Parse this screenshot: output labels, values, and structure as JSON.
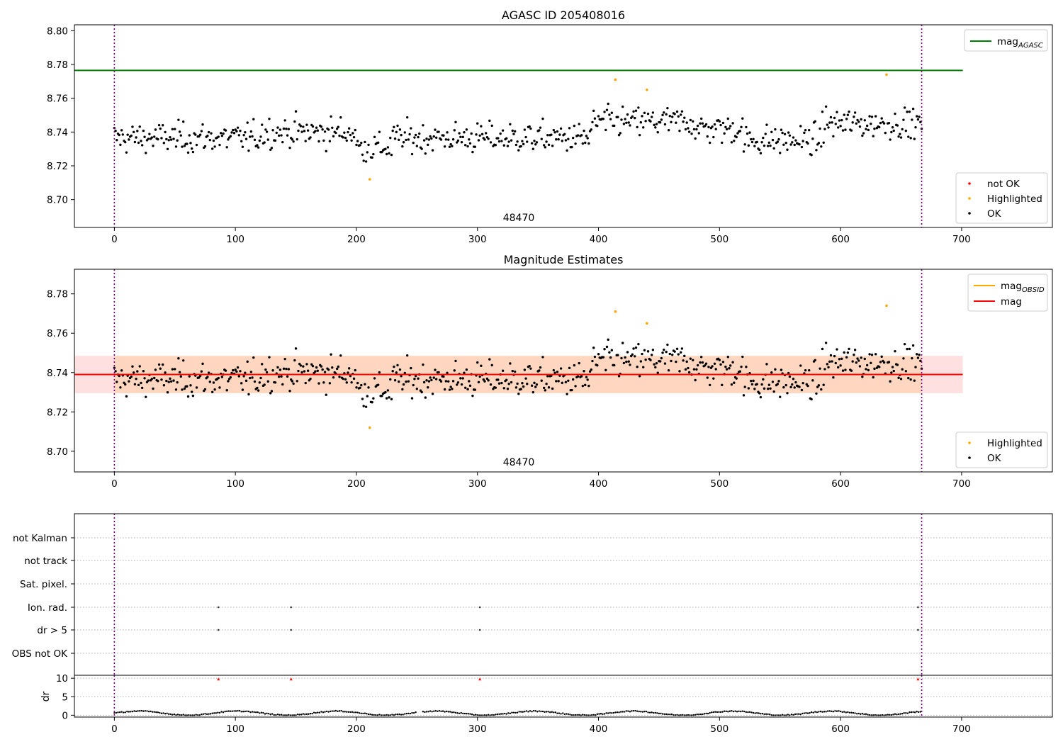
{
  "chart_data": [
    {
      "type": "scatter",
      "title": "AGASC ID 205408016",
      "obsid_label": "48470",
      "x_lim": [
        -33,
        775
      ],
      "y_lim": [
        8.6835,
        8.8035
      ],
      "x_ticks": [
        0,
        100,
        200,
        300,
        400,
        500,
        600,
        700
      ],
      "y_ticks": [
        8.7,
        8.72,
        8.74,
        8.76,
        8.78,
        8.8
      ],
      "grid": false,
      "vlines": [
        0,
        667
      ],
      "mag_agasc": 8.7765,
      "mag_agasc_x_range": [
        -33,
        701
      ],
      "legend_lines": [
        {
          "label": "mag",
          "sub": "AGASC",
          "color": "#008000"
        }
      ],
      "legend_points": [
        {
          "label": "not OK",
          "color": "#ff0000"
        },
        {
          "label": "Highlighted",
          "color": "#ffa500"
        },
        {
          "label": "OK",
          "color": "#000000"
        }
      ],
      "highlighted_points": [
        [
          211,
          8.712
        ],
        [
          414,
          8.771
        ],
        [
          440,
          8.765
        ],
        [
          638,
          8.774
        ]
      ]
    },
    {
      "type": "scatter",
      "title": "Magnitude Estimates",
      "obsid_label": "48470",
      "x_lim": [
        -33,
        775
      ],
      "y_lim": [
        8.6895,
        8.7925
      ],
      "x_ticks": [
        0,
        100,
        200,
        300,
        400,
        500,
        600,
        700
      ],
      "y_ticks": [
        8.7,
        8.72,
        8.74,
        8.76,
        8.78
      ],
      "grid": false,
      "vlines": [
        0,
        667
      ],
      "mag": 8.739,
      "mag_band": [
        8.7295,
        8.7485
      ],
      "band_x_range": [
        -33,
        701
      ],
      "obsid_band_x_range": [
        0,
        667
      ],
      "legend_lines": [
        {
          "label": "mag",
          "sub": "OBSID",
          "color": "#ffa500"
        },
        {
          "label": "mag",
          "sub": "",
          "color": "#ff0000"
        }
      ],
      "legend_points": [
        {
          "label": "Highlighted",
          "color": "#ffa500"
        },
        {
          "label": "OK",
          "color": "#000000"
        }
      ],
      "highlighted_points": [
        [
          211,
          8.712
        ],
        [
          414,
          8.771
        ],
        [
          440,
          8.765
        ],
        [
          638,
          8.774
        ]
      ]
    },
    {
      "type": "scatter",
      "title": "",
      "categories": [
        "not Kalman",
        "not track",
        "Sat. pixel.",
        "Ion. rad.",
        "dr > 5",
        "OBS not OK"
      ],
      "x_lim": [
        -33,
        775
      ],
      "x_ticks": [
        0,
        100,
        200,
        300,
        400,
        500,
        600,
        700
      ],
      "grid": true,
      "vlines": [
        0,
        667
      ],
      "flag_points": {
        "Ion. rad.": [
          86,
          146,
          302,
          664
        ],
        "dr > 5": [
          86,
          146,
          302,
          664
        ]
      }
    },
    {
      "type": "scatter",
      "title": "",
      "ylabel": "dr",
      "x_lim": [
        -33,
        775
      ],
      "y_lim": [
        -0.5,
        10.8
      ],
      "y_ticks": [
        0,
        5,
        10
      ],
      "x_ticks": [
        0,
        100,
        200,
        300,
        400,
        500,
        600,
        700
      ],
      "grid": true,
      "vlines": [
        0,
        667
      ],
      "dr_high_points": [
        [
          86,
          9.8
        ],
        [
          146,
          9.8
        ],
        [
          302,
          9.8
        ],
        [
          664,
          9.8
        ]
      ]
    }
  ]
}
